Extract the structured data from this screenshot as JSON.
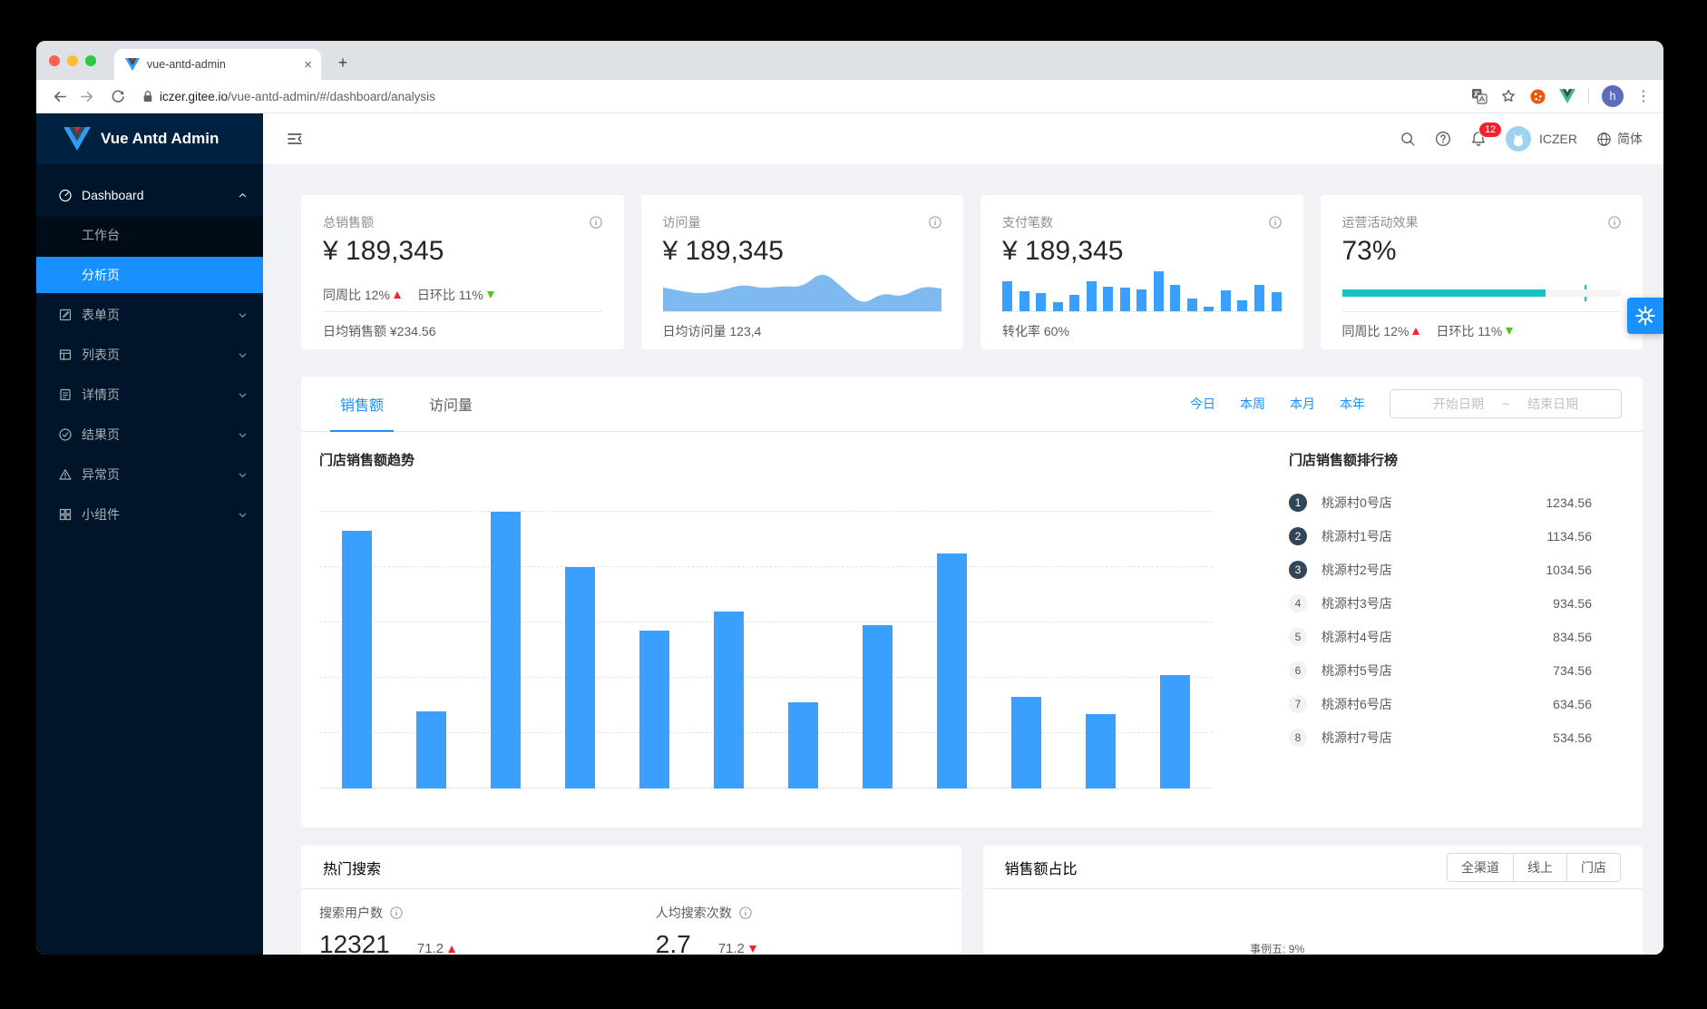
{
  "colors": {
    "accent": "#1890ff",
    "bar": "#3aa0ff",
    "area_fill": "#7eb9f0",
    "teal": "#13c2c2",
    "red": "#f5222d",
    "green": "#52c41a",
    "sidebar_bg": "#001529",
    "badge_dark": "#314659"
  },
  "browser": {
    "tab_title": "vue-antd-admin",
    "new_tab_label": "+",
    "url_domain": "iczer.gitee.io",
    "url_path": "/vue-antd-admin/#/dashboard/analysis",
    "profile_initial": "h",
    "kebab": "⋮"
  },
  "sidebar": {
    "logo_title": "Vue Antd Admin",
    "items": [
      {
        "label": "Dashboard"
      },
      {
        "label": "工作台"
      },
      {
        "label": "分析页"
      },
      {
        "label": "表单页"
      },
      {
        "label": "列表页"
      },
      {
        "label": "详情页"
      },
      {
        "label": "结果页"
      },
      {
        "label": "异常页"
      },
      {
        "label": "小组件"
      }
    ]
  },
  "header": {
    "notification_count": "12",
    "username": "ICZER",
    "language": "简体"
  },
  "stat_cards": {
    "sales": {
      "title": "总销售额",
      "value": "¥ 189,345",
      "week_text": "同周比 12%",
      "day_text": "日环比 11%",
      "footer": "日均销售额 ¥234.56"
    },
    "visits": {
      "title": "访问量",
      "value": "¥ 189,345",
      "footer": "日均访问量 123,4"
    },
    "payments": {
      "title": "支付笔数",
      "value": "¥ 189,345",
      "footer": "转化率 60%"
    },
    "activity": {
      "title": "运营活动效果",
      "value": "73%",
      "week_text": "同周比 12%",
      "day_text": "日环比 11%"
    }
  },
  "main_panel": {
    "tab_sales": "销售额",
    "tab_visits": "访问量",
    "range_today": "今日",
    "range_week": "本周",
    "range_month": "本月",
    "range_year": "本年",
    "date_start": "开始日期",
    "date_tilde": "~",
    "date_end": "结束日期",
    "chart_title": "门店销售额趋势",
    "ranking_title": "门店销售额排行榜",
    "ranking": [
      {
        "rank": "1",
        "name": "桃源村0号店",
        "value": "1234.56"
      },
      {
        "rank": "2",
        "name": "桃源村1号店",
        "value": "1134.56"
      },
      {
        "rank": "3",
        "name": "桃源村2号店",
        "value": "1034.56"
      },
      {
        "rank": "4",
        "name": "桃源村3号店",
        "value": "934.56"
      },
      {
        "rank": "5",
        "name": "桃源村4号店",
        "value": "834.56"
      },
      {
        "rank": "6",
        "name": "桃源村5号店",
        "value": "734.56"
      },
      {
        "rank": "7",
        "name": "桃源村6号店",
        "value": "634.56"
      },
      {
        "rank": "8",
        "name": "桃源村7号店",
        "value": "534.56"
      }
    ]
  },
  "hot_search": {
    "title": "热门搜索",
    "users_label": "搜索用户数",
    "users_value": "12321",
    "users_trend": "71.2",
    "per_capita_label": "人均搜索次数",
    "per_capita_value": "2.7",
    "per_capita_trend": "71.2"
  },
  "sales_ratio": {
    "title": "销售额占比",
    "btn_all": "全渠道",
    "btn_online": "线上",
    "btn_store": "门店",
    "partial_legend": "事例五: 9%"
  },
  "chart_data": [
    {
      "type": "bar",
      "title": "门店销售额趋势",
      "values": [
        930,
        280,
        1000,
        800,
        570,
        640,
        310,
        590,
        850,
        330,
        270,
        410
      ],
      "ylim": [
        0,
        1000
      ],
      "grid": "horizontal-dashed",
      "legend": "none",
      "xlabel": "",
      "ylabel": ""
    },
    {
      "type": "area",
      "title": "访问量迷你图",
      "values": [
        55,
        45,
        40,
        48,
        62,
        52,
        58,
        55,
        93,
        55,
        13,
        43,
        32,
        58,
        52
      ],
      "ylim": [
        0,
        100
      ]
    },
    {
      "type": "bar",
      "title": "支付笔数迷你图",
      "values": [
        75,
        50,
        45,
        22,
        42,
        75,
        62,
        60,
        55,
        100,
        65,
        32,
        12,
        52,
        28,
        65,
        48
      ],
      "ylim": [
        0,
        100
      ]
    },
    {
      "type": "progress",
      "title": "运营活动效果",
      "value": 73,
      "target": 87,
      "unit": "%"
    }
  ]
}
